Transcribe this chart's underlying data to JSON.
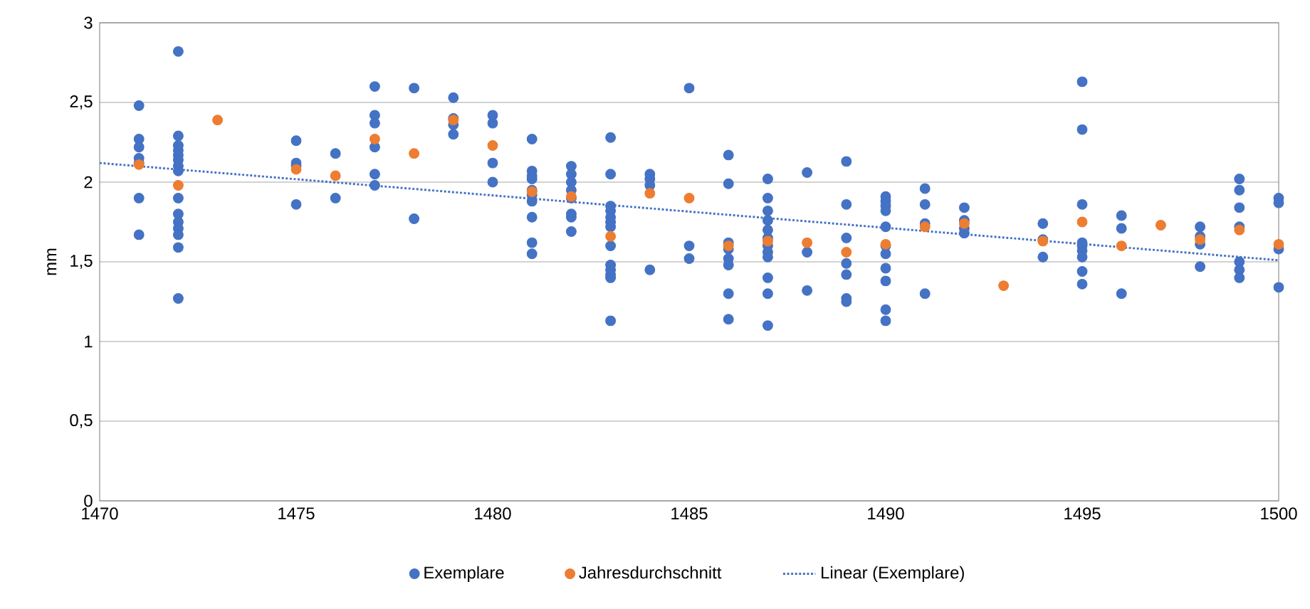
{
  "chart_data": {
    "type": "scatter",
    "ylabel": "mm",
    "xlim": [
      1470,
      1500
    ],
    "xticks": [
      1470,
      1475,
      1480,
      1485,
      1490,
      1495,
      1500
    ],
    "ylim": [
      0,
      3
    ],
    "yticks": [
      0,
      {
        "value": 0.5,
        "label": "0,5"
      },
      1,
      {
        "value": 1.5,
        "label": "1,5"
      },
      2,
      {
        "value": 2.5,
        "label": "2,5"
      },
      3
    ],
    "grid": "y",
    "legend": "bottom",
    "series": [
      {
        "name": "Exemplare",
        "color": "#4472c4",
        "marker": "circle",
        "x": [
          1471,
          1471,
          1471,
          1471,
          1471,
          1471,
          1471,
          1472,
          1472,
          1472,
          1472,
          1472,
          1472,
          1472,
          1472,
          1472,
          1472,
          1472,
          1472,
          1472,
          1472,
          1472,
          1475,
          1475,
          1475,
          1475,
          1476,
          1476,
          1477,
          1477,
          1477,
          1477,
          1477,
          1477,
          1478,
          1478,
          1479,
          1479,
          1479,
          1479,
          1480,
          1480,
          1480,
          1480,
          1481,
          1481,
          1481,
          1481,
          1481,
          1481,
          1481,
          1481,
          1481,
          1481,
          1482,
          1482,
          1482,
          1482,
          1482,
          1482,
          1482,
          1482,
          1483,
          1483,
          1483,
          1483,
          1483,
          1483,
          1483,
          1483,
          1483,
          1483,
          1483,
          1483,
          1483,
          1484,
          1484,
          1484,
          1484,
          1485,
          1485,
          1485,
          1486,
          1486,
          1486,
          1486,
          1486,
          1486,
          1486,
          1486,
          1487,
          1487,
          1487,
          1487,
          1487,
          1487,
          1487,
          1487,
          1487,
          1487,
          1487,
          1487,
          1488,
          1488,
          1488,
          1489,
          1489,
          1489,
          1489,
          1489,
          1489,
          1489,
          1490,
          1490,
          1490,
          1490,
          1490,
          1490,
          1490,
          1490,
          1490,
          1490,
          1490,
          1491,
          1491,
          1491,
          1491,
          1492,
          1492,
          1492,
          1492,
          1494,
          1494,
          1494,
          1495,
          1495,
          1495,
          1495,
          1495,
          1495,
          1495,
          1495,
          1495,
          1496,
          1496,
          1496,
          1498,
          1498,
          1498,
          1498,
          1499,
          1499,
          1499,
          1499,
          1499,
          1499,
          1499,
          1500,
          1500,
          1500,
          1500
        ],
        "values": [
          2.48,
          2.27,
          2.22,
          2.15,
          2.12,
          1.9,
          1.67,
          2.82,
          2.29,
          2.23,
          2.2,
          2.17,
          2.14,
          2.1,
          2.07,
          1.9,
          1.8,
          1.75,
          1.71,
          1.67,
          1.59,
          1.27,
          2.26,
          2.12,
          2.1,
          1.86,
          2.18,
          1.9,
          2.6,
          2.42,
          2.37,
          2.22,
          2.05,
          1.98,
          2.59,
          1.77,
          2.53,
          2.4,
          2.36,
          2.3,
          2.42,
          2.37,
          2.12,
          2.0,
          2.27,
          2.07,
          2.04,
          2.02,
          1.95,
          1.92,
          1.88,
          1.78,
          1.62,
          1.55,
          2.1,
          2.05,
          2.0,
          1.95,
          1.9,
          1.8,
          1.78,
          1.69,
          2.28,
          2.05,
          1.85,
          1.82,
          1.78,
          1.75,
          1.72,
          1.6,
          1.48,
          1.45,
          1.42,
          1.4,
          1.13,
          2.05,
          2.02,
          1.98,
          1.45,
          2.59,
          1.6,
          1.52,
          2.17,
          1.99,
          1.62,
          1.58,
          1.52,
          1.48,
          1.3,
          1.14,
          2.02,
          1.9,
          1.82,
          1.76,
          1.7,
          1.65,
          1.6,
          1.56,
          1.53,
          1.4,
          1.3,
          1.1,
          2.06,
          1.56,
          1.32,
          2.13,
          1.86,
          1.65,
          1.49,
          1.42,
          1.27,
          1.25,
          1.91,
          1.88,
          1.85,
          1.82,
          1.72,
          1.6,
          1.55,
          1.46,
          1.38,
          1.2,
          1.13,
          1.96,
          1.86,
          1.74,
          1.3,
          1.84,
          1.76,
          1.71,
          1.68,
          1.74,
          1.64,
          1.53,
          2.63,
          2.33,
          1.86,
          1.62,
          1.6,
          1.57,
          1.53,
          1.44,
          1.36,
          1.79,
          1.71,
          1.3,
          1.72,
          1.66,
          1.61,
          1.47,
          2.02,
          1.95,
          1.84,
          1.72,
          1.5,
          1.45,
          1.4,
          1.9,
          1.87,
          1.58,
          1.34
        ]
      },
      {
        "name": "Jahresdurchschnitt",
        "color": "#ed7d31",
        "marker": "circle",
        "x": [
          1471,
          1472,
          1473,
          1475,
          1476,
          1477,
          1478,
          1479,
          1480,
          1481,
          1482,
          1483,
          1484,
          1485,
          1486,
          1487,
          1488,
          1489,
          1490,
          1491,
          1492,
          1493,
          1494,
          1495,
          1496,
          1497,
          1498,
          1499,
          1500
        ],
        "values": [
          2.11,
          1.98,
          2.39,
          2.08,
          2.04,
          2.27,
          2.18,
          2.39,
          2.23,
          1.94,
          1.91,
          1.66,
          1.93,
          1.9,
          1.6,
          1.63,
          1.62,
          1.56,
          1.61,
          1.72,
          1.74,
          1.35,
          1.63,
          1.75,
          1.6,
          1.73,
          1.64,
          1.7,
          1.61
        ]
      },
      {
        "name": "Linear (Exemplare)",
        "type": "line",
        "line_style": "dotted",
        "marker": "none",
        "color": "#4472c4",
        "x": [
          1470,
          1500
        ],
        "values": [
          2.12,
          1.51
        ]
      }
    ]
  }
}
